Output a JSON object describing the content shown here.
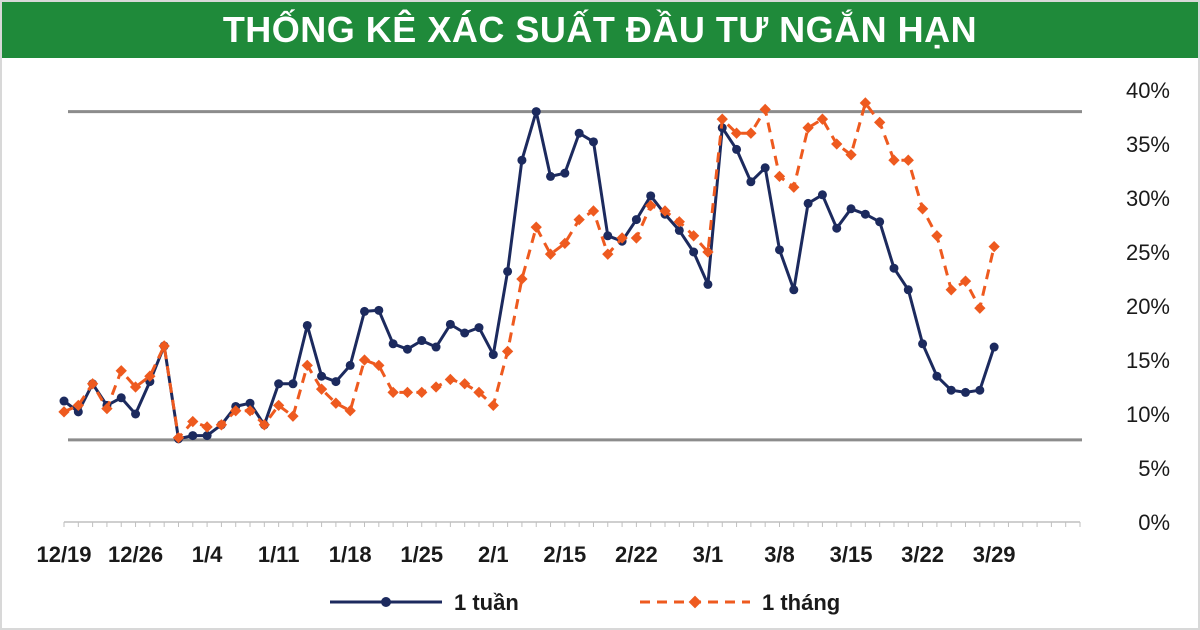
{
  "header": {
    "title": "THỐNG KÊ XÁC SUẤT ĐẦU TƯ NGẮN HẠN"
  },
  "colors": {
    "title_bg": "#1f8a3a",
    "series_1": "#1c2a5e",
    "series_2": "#ee5a1f",
    "refline": "#8c8c8c"
  },
  "chart_data": {
    "type": "line",
    "title": "THỐNG KÊ XÁC SUẤT ĐẦU TƯ NGẮN HẠN",
    "y_axis_side": "right",
    "ylim": [
      0,
      40
    ],
    "yticks": [
      {
        "value": 0,
        "label": "0%"
      },
      {
        "value": 5,
        "label": "5%"
      },
      {
        "value": 10,
        "label": "10%"
      },
      {
        "value": 15,
        "label": "15%"
      },
      {
        "value": 20,
        "label": "20%"
      },
      {
        "value": 25,
        "label": "25%"
      },
      {
        "value": 30,
        "label": "30%"
      },
      {
        "value": 35,
        "label": "35%"
      },
      {
        "value": 40,
        "label": "40%"
      }
    ],
    "x_count": 72,
    "xticks": [
      {
        "index": 0,
        "label": "12/19"
      },
      {
        "index": 5,
        "label": "12/26"
      },
      {
        "index": 10,
        "label": "1/4"
      },
      {
        "index": 15,
        "label": "1/11"
      },
      {
        "index": 20,
        "label": "1/18"
      },
      {
        "index": 25,
        "label": "1/25"
      },
      {
        "index": 30,
        "label": "2/1"
      },
      {
        "index": 35,
        "label": "2/15"
      },
      {
        "index": 40,
        "label": "2/22"
      },
      {
        "index": 45,
        "label": "3/1"
      },
      {
        "index": 50,
        "label": "3/8"
      },
      {
        "index": 55,
        "label": "3/15"
      },
      {
        "index": 60,
        "label": "3/22"
      },
      {
        "index": 65,
        "label": "3/29"
      }
    ],
    "reference_lines": [
      {
        "value": 38,
        "color": "#8c8c8c"
      },
      {
        "value": 7.6,
        "color": "#8c8c8c"
      }
    ],
    "legend_position": "bottom",
    "grid": false,
    "series": [
      {
        "name": "1 tuần",
        "color": "#1c2a5e",
        "style": "solid",
        "marker": "circle",
        "points": [
          [
            0,
            11.2
          ],
          [
            1,
            10.2
          ],
          [
            2,
            12.8
          ],
          [
            3,
            10.8
          ],
          [
            4,
            11.5
          ],
          [
            5,
            10.0
          ],
          [
            6,
            13.0
          ],
          [
            7,
            16.3
          ],
          [
            8,
            7.7
          ],
          [
            9,
            8.0
          ],
          [
            10,
            8.0
          ],
          [
            11,
            9.0
          ],
          [
            12,
            10.7
          ],
          [
            13,
            11.0
          ],
          [
            14,
            9.0
          ],
          [
            15,
            12.8
          ],
          [
            16,
            12.8
          ],
          [
            17,
            18.2
          ],
          [
            18,
            13.5
          ],
          [
            19,
            13.0
          ],
          [
            20,
            14.5
          ],
          [
            21,
            19.5
          ],
          [
            22,
            19.6
          ],
          [
            23,
            16.5
          ],
          [
            24,
            16.0
          ],
          [
            25,
            16.8
          ],
          [
            26,
            16.2
          ],
          [
            27,
            18.3
          ],
          [
            28,
            17.5
          ],
          [
            29,
            18.0
          ],
          [
            30,
            15.5
          ],
          [
            31,
            23.2
          ],
          [
            32,
            33.5
          ],
          [
            33,
            38.0
          ],
          [
            34,
            32.0
          ],
          [
            35,
            32.3
          ],
          [
            36,
            36.0
          ],
          [
            37,
            35.2
          ],
          [
            38,
            26.5
          ],
          [
            39,
            26.0
          ],
          [
            40,
            28.0
          ],
          [
            41,
            30.2
          ],
          [
            42,
            28.5
          ],
          [
            43,
            27.0
          ],
          [
            44,
            25.0
          ],
          [
            45,
            22.0
          ],
          [
            46,
            36.5
          ],
          [
            47,
            34.5
          ],
          [
            48,
            31.5
          ],
          [
            49,
            32.8
          ],
          [
            50,
            25.2
          ],
          [
            51,
            21.5
          ],
          [
            52,
            29.5
          ],
          [
            53,
            30.3
          ],
          [
            54,
            27.2
          ],
          [
            55,
            29.0
          ],
          [
            56,
            28.5
          ],
          [
            57,
            27.8
          ],
          [
            58,
            23.5
          ],
          [
            59,
            21.5
          ],
          [
            60,
            16.5
          ],
          [
            61,
            13.5
          ],
          [
            62,
            12.2
          ],
          [
            63,
            12.0
          ],
          [
            64,
            12.2
          ],
          [
            65,
            16.2
          ]
        ]
      },
      {
        "name": "1 tháng",
        "color": "#ee5a1f",
        "style": "dashed",
        "marker": "diamond",
        "points": [
          [
            0,
            10.2
          ],
          [
            1,
            10.8
          ],
          [
            2,
            12.8
          ],
          [
            3,
            10.5
          ],
          [
            4,
            14.0
          ],
          [
            5,
            12.5
          ],
          [
            6,
            13.5
          ],
          [
            7,
            16.3
          ],
          [
            8,
            7.8
          ],
          [
            9,
            9.3
          ],
          [
            10,
            8.8
          ],
          [
            11,
            9.0
          ],
          [
            12,
            10.3
          ],
          [
            13,
            10.3
          ],
          [
            14,
            9.0
          ],
          [
            15,
            10.8
          ],
          [
            16,
            9.8
          ],
          [
            17,
            14.5
          ],
          [
            18,
            12.3
          ],
          [
            19,
            11.0
          ],
          [
            20,
            10.3
          ],
          [
            21,
            15.0
          ],
          [
            22,
            14.5
          ],
          [
            23,
            12.0
          ],
          [
            24,
            12.0
          ],
          [
            25,
            12.0
          ],
          [
            26,
            12.5
          ],
          [
            27,
            13.2
          ],
          [
            28,
            12.8
          ],
          [
            29,
            12.0
          ],
          [
            30,
            10.8
          ],
          [
            31,
            15.8
          ],
          [
            32,
            22.5
          ],
          [
            33,
            27.3
          ],
          [
            34,
            24.8
          ],
          [
            35,
            25.8
          ],
          [
            36,
            28.0
          ],
          [
            37,
            28.8
          ],
          [
            38,
            24.8
          ],
          [
            39,
            26.3
          ],
          [
            40,
            26.3
          ],
          [
            41,
            29.3
          ],
          [
            42,
            28.8
          ],
          [
            43,
            27.8
          ],
          [
            44,
            26.5
          ],
          [
            45,
            25.0
          ],
          [
            46,
            37.3
          ],
          [
            47,
            36.0
          ],
          [
            48,
            36.0
          ],
          [
            49,
            38.2
          ],
          [
            50,
            32.0
          ],
          [
            51,
            31.0
          ],
          [
            52,
            36.5
          ],
          [
            53,
            37.3
          ],
          [
            54,
            35.0
          ],
          [
            55,
            34.0
          ],
          [
            56,
            38.8
          ],
          [
            57,
            37.0
          ],
          [
            58,
            33.5
          ],
          [
            59,
            33.5
          ],
          [
            60,
            29.0
          ],
          [
            61,
            26.5
          ],
          [
            62,
            21.5
          ],
          [
            63,
            22.3
          ],
          [
            64,
            19.8
          ],
          [
            65,
            25.5
          ]
        ]
      }
    ]
  }
}
